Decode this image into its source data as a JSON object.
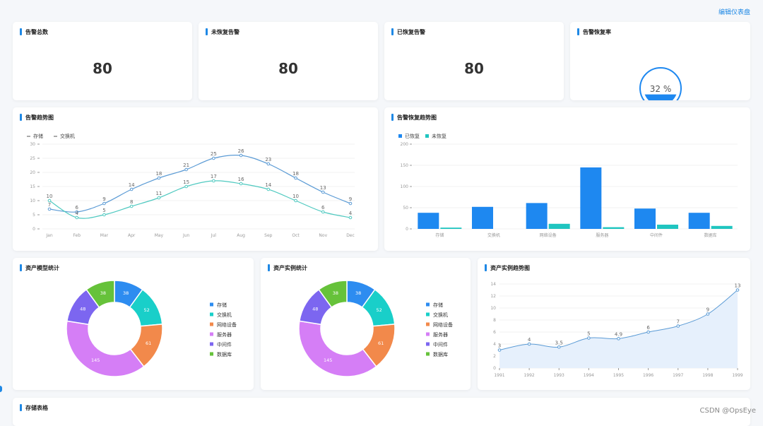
{
  "header": {
    "edit_label": "编辑仪表盘"
  },
  "stats": [
    {
      "title": "告警总数",
      "value": "80"
    },
    {
      "title": "未恢复告警",
      "value": "80"
    },
    {
      "title": "已恢复告警",
      "value": "80"
    }
  ],
  "recovery_rate": {
    "title": "告警恢复率",
    "label": "32 %",
    "fraction": 0.32
  },
  "trend_chart": {
    "title": "告警趋势图",
    "chart_data": {
      "type": "line",
      "categories": [
        "Jan",
        "Feb",
        "Mar",
        "Apr",
        "May",
        "Jun",
        "Jul",
        "Aug",
        "Sep",
        "Oct",
        "Nov",
        "Dec"
      ],
      "series": [
        {
          "name": "存储",
          "values": [
            7,
            6,
            9,
            14,
            18,
            21,
            25,
            26,
            23,
            18,
            13,
            9
          ],
          "color": "#5b9bd5"
        },
        {
          "name": "交换机",
          "values": [
            10,
            4,
            5,
            8,
            11,
            15,
            17,
            16,
            14,
            10,
            6,
            4
          ],
          "color": "#4fc9c0"
        }
      ],
      "yticks": [
        0,
        5,
        10,
        15,
        20,
        25,
        30
      ],
      "ylim": [
        0,
        30
      ]
    }
  },
  "recovery_chart": {
    "title": "告警恢复趋势图",
    "chart_data": {
      "type": "bar",
      "categories": [
        "存储",
        "交换机",
        "网络设备",
        "服务器",
        "中间件",
        "数据库"
      ],
      "series": [
        {
          "name": "已恢复",
          "values": [
            38,
            52,
            61,
            145,
            48,
            38
          ],
          "color": "#1e88f0"
        },
        {
          "name": "未恢复",
          "values": [
            3,
            0,
            12,
            4,
            10,
            7
          ],
          "color": "#20c5c0"
        }
      ],
      "yticks": [
        0,
        50,
        100,
        150,
        200
      ],
      "ylim": [
        0,
        200
      ]
    }
  },
  "model_pie": {
    "title": "资产模型统计",
    "chart_data": {
      "type": "pie",
      "labels": [
        "存储",
        "交换机",
        "网络设备",
        "服务器",
        "中间件",
        "数据库"
      ],
      "values": [
        38,
        52,
        61,
        145,
        48,
        38
      ],
      "colors": [
        "#2d8cf0",
        "#19cfc9",
        "#f2894b",
        "#d57ef6",
        "#7c66f0",
        "#66c23a"
      ]
    }
  },
  "instance_pie": {
    "title": "资产实例统计",
    "chart_data": {
      "type": "pie",
      "labels": [
        "存储",
        "交换机",
        "网络设备",
        "服务器",
        "中间件",
        "数据库"
      ],
      "values": [
        38,
        52,
        61,
        145,
        48,
        38
      ],
      "colors": [
        "#2d8cf0",
        "#19cfc9",
        "#f2894b",
        "#d57ef6",
        "#7c66f0",
        "#66c23a"
      ]
    }
  },
  "instance_trend": {
    "title": "资产实例趋势图",
    "chart_data": {
      "type": "area",
      "categories": [
        "1991",
        "1992",
        "1993",
        "1994",
        "1995",
        "1996",
        "1997",
        "1998",
        "1999"
      ],
      "values": [
        3,
        4,
        3.5,
        5,
        4.9,
        6,
        7,
        9,
        13
      ],
      "labels": [
        "3",
        "4",
        "3.5",
        "5",
        "4.9",
        "6",
        "7",
        "9",
        "13"
      ],
      "yticks": [
        0,
        2,
        4,
        6,
        8,
        10,
        12,
        14
      ],
      "ylim": [
        0,
        14
      ]
    }
  },
  "storage_table": {
    "title": "存储表格"
  },
  "watermark": "CSDN @OpsEye"
}
